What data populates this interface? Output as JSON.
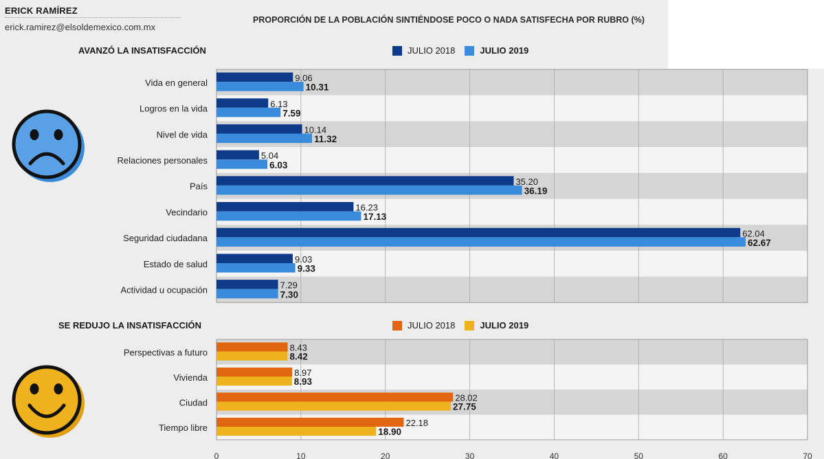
{
  "author": "ERICK RAMÍREZ",
  "email": "erick.ramirez@elsoldemexico.com.mx",
  "chart_data": {
    "type": "bar",
    "title": "PROPORCIÓN DE LA POBLACIÓN SINTIÉNDOSE POCO O NADA SATISFECHA POR RUBRO (%)",
    "xlim": [
      0,
      70
    ],
    "x_ticks": [
      "0",
      "10",
      "20",
      "30",
      "40",
      "50",
      "60",
      "70"
    ],
    "grid": true,
    "orientation": "horizontal",
    "groups": [
      {
        "title": "AVANZÓ LA INSATISFACCIÓN",
        "face": "sad-face-icon",
        "categories": [
          "Vida en general",
          "Logros en la vida",
          "Nivel de vida",
          "Relaciones personales",
          "País",
          "Vecindario",
          "Seguridad ciudadana",
          "Estado de salud",
          "Actividad u ocupación"
        ],
        "series": [
          {
            "name": "JULIO 2018",
            "color": "#0f3a8a",
            "values": [
              9.06,
              6.13,
              10.14,
              5.04,
              35.2,
              16.23,
              62.04,
              9.03,
              7.29
            ],
            "labels": [
              "9.06",
              "6.13",
              "10.14",
              "5.04",
              "35.20",
              "16.23",
              "62.04",
              "9.03",
              "7.29"
            ]
          },
          {
            "name": "JULIO 2019",
            "color": "#3a8bdb",
            "values": [
              10.31,
              7.59,
              11.32,
              6.03,
              36.19,
              17.13,
              62.67,
              9.33,
              7.3
            ],
            "labels": [
              "10.31",
              "7.59",
              "11.32",
              "6.03",
              "36.19",
              "17.13",
              "62.67",
              "9.33",
              "7.30"
            ]
          }
        ]
      },
      {
        "title": "SE REDUJO LA INSATISFACCIÓN",
        "face": "happy-face-icon",
        "categories": [
          "Perspectivas a futuro",
          "Vivienda",
          "Ciudad",
          "Tiempo libre"
        ],
        "series": [
          {
            "name": "JULIO 2018",
            "color": "#e2650f",
            "values": [
              8.43,
              8.97,
              28.02,
              22.18
            ],
            "labels": [
              "8.43",
              "8.97",
              "28.02",
              "22.18"
            ]
          },
          {
            "name": "JULIO 2019",
            "color": "#f0b21c",
            "values": [
              8.42,
              8.93,
              27.75,
              18.9
            ],
            "labels": [
              "8.42",
              "8.93",
              "27.75",
              "18.90"
            ]
          }
        ]
      }
    ]
  }
}
